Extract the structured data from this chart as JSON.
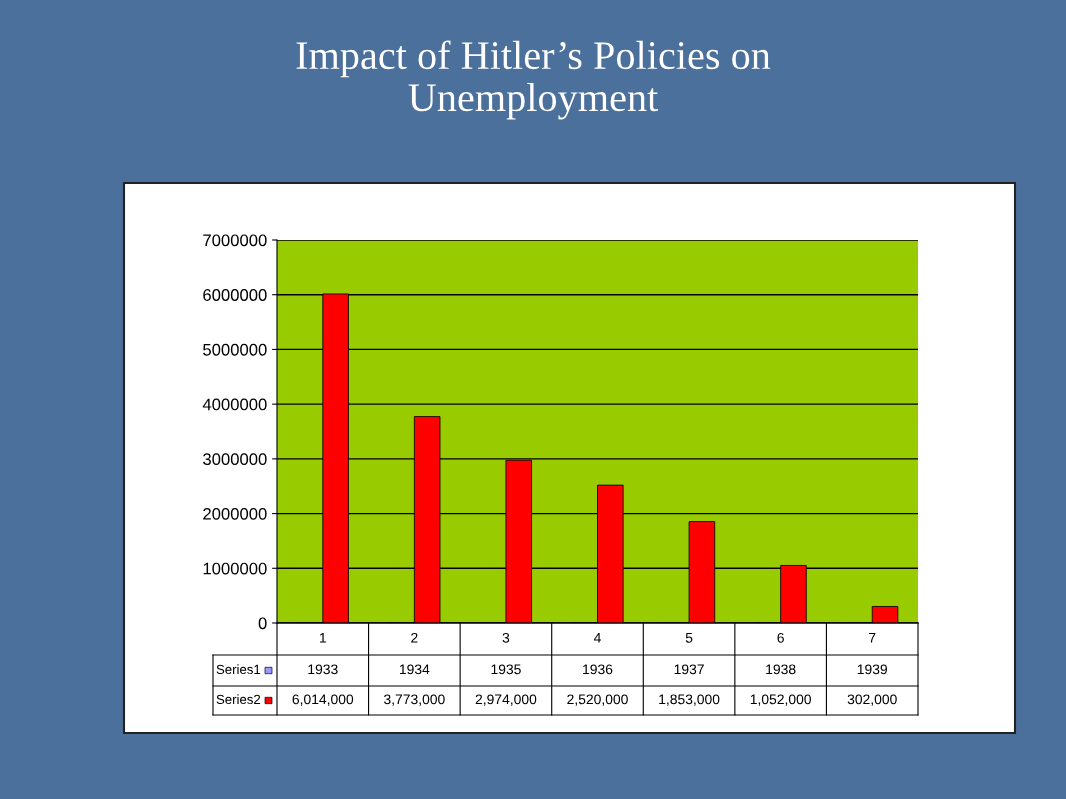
{
  "chart_data": {
    "type": "bar",
    "title": "Impact of Hitler’s Policies on\nUnemployment",
    "categories": [
      "1",
      "2",
      "3",
      "4",
      "5",
      "6",
      "7"
    ],
    "series": [
      {
        "name": "Series1",
        "color": "#9999ff",
        "values": [
          1933,
          1934,
          1935,
          1936,
          1937,
          1938,
          1939
        ],
        "value_labels": [
          "1933",
          "1934",
          "1935",
          "1936",
          "1937",
          "1938",
          "1939"
        ]
      },
      {
        "name": "Series2",
        "color": "#ff0000",
        "values": [
          6014000,
          3773000,
          2974000,
          2520000,
          1853000,
          1052000,
          302000
        ],
        "value_labels": [
          "6,014,000",
          "3,773,000",
          "2,974,000",
          "2,520,000",
          "1,853,000",
          "1,052,000",
          "302,000"
        ]
      }
    ],
    "ylim": [
      0,
      7000000
    ],
    "yticks": [
      0,
      1000000,
      2000000,
      3000000,
      4000000,
      5000000,
      6000000,
      7000000
    ],
    "grid": "y",
    "legend": "left"
  }
}
